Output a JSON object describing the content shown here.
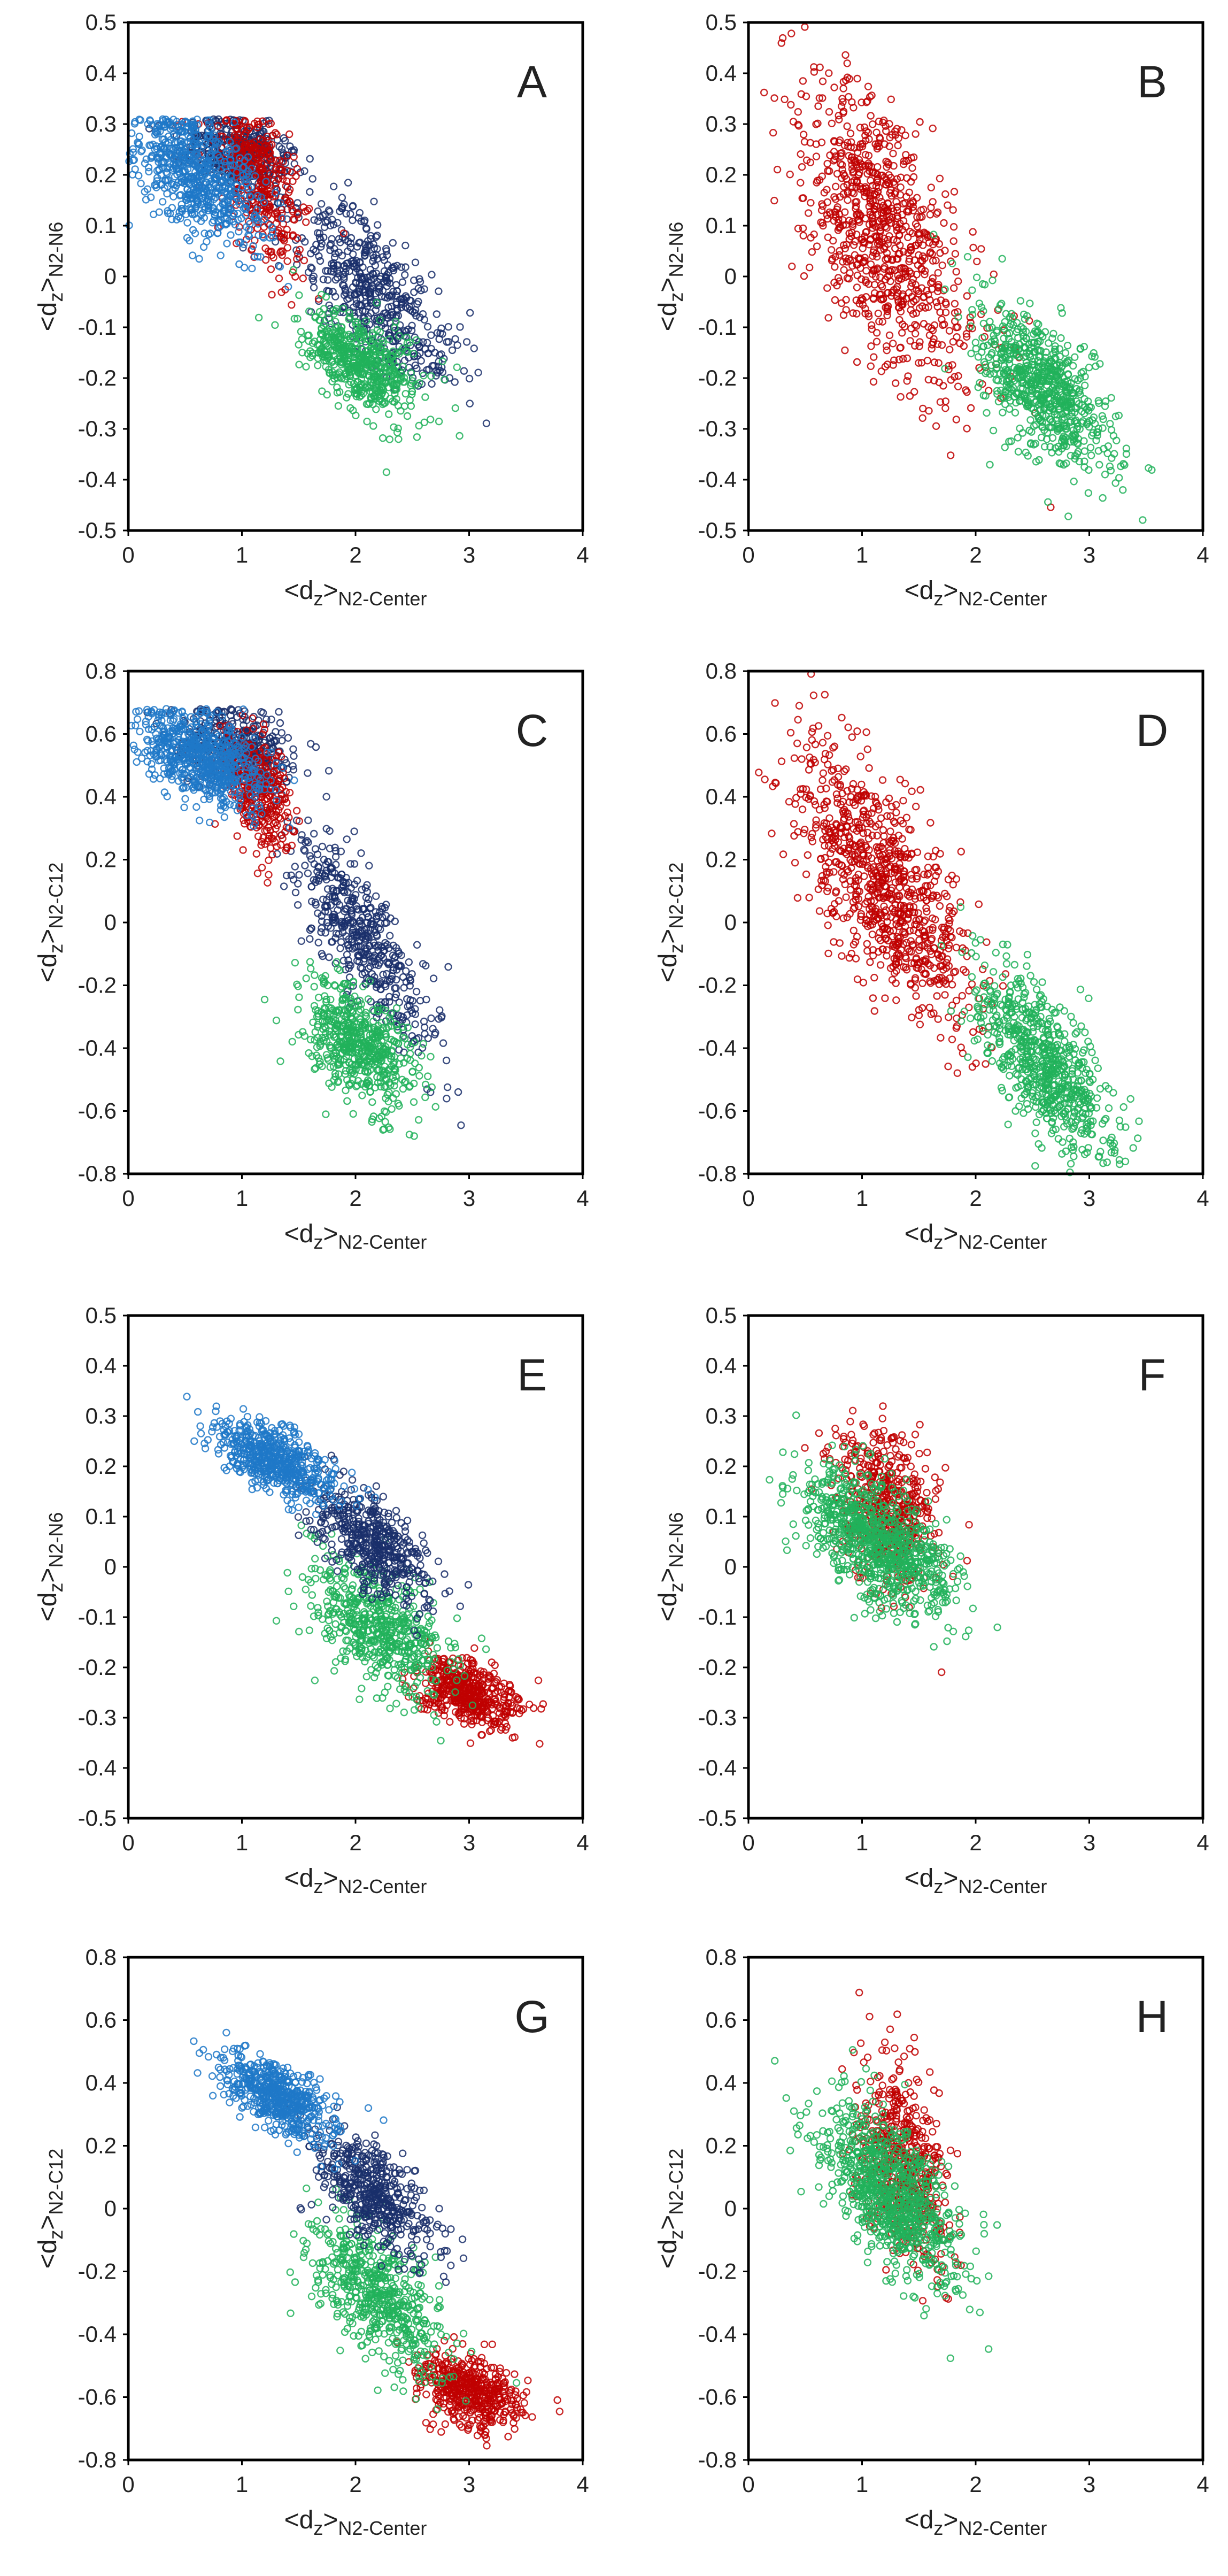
{
  "colors": {
    "light_blue": "#1f78c8",
    "dark_navy": "#1a2f6b",
    "red": "#c00000",
    "green": "#21b25a",
    "axis": "#000000",
    "text": "#222222"
  },
  "chart_data": [
    {
      "type": "scatter",
      "panel": "A",
      "xlabel_main": "<d",
      "xlabel_sub1": "z",
      "xlabel_mid": ">",
      "xlabel_sub2": "N2-Center",
      "ylabel_main": "<d",
      "ylabel_sub1": "z",
      "ylabel_mid": ">",
      "ylabel_sub2": "N2-N6",
      "xlim": [
        0,
        4
      ],
      "ylim": [
        -0.5,
        0.5
      ],
      "xticks": [
        "0",
        "1",
        "2",
        "3",
        "4"
      ],
      "yticks": [
        "-0.5",
        "-0.4",
        "-0.3",
        "-0.2",
        "-0.1",
        "0",
        "0.1",
        "0.2",
        "0.3",
        "0.4",
        "0.5"
      ],
      "series": [
        {
          "name": "dark",
          "color": "dark_navy",
          "clusters": [
            {
              "x": 1.0,
              "y": 0.24,
              "sx": 0.25,
              "sy": 0.04,
              "rho": -0.3,
              "n": 380,
              "clipYMax": 0.31
            },
            {
              "x": 2.15,
              "y": -0.03,
              "sx": 0.35,
              "sy": 0.09,
              "rho": -0.7,
              "n": 520
            }
          ]
        },
        {
          "name": "red",
          "color": "red",
          "clusters": [
            {
              "x": 1.15,
              "y": 0.19,
              "sx": 0.2,
              "sy": 0.08,
              "rho": -0.5,
              "n": 360,
              "clipYMax": 0.31
            }
          ]
        },
        {
          "name": "light",
          "color": "light_blue",
          "clusters": [
            {
              "x": 0.6,
              "y": 0.2,
              "sx": 0.3,
              "sy": 0.07,
              "rho": -0.55,
              "n": 650,
              "clipYMax": 0.31
            }
          ]
        },
        {
          "name": "green",
          "color": "green",
          "clusters": [
            {
              "x": 2.05,
              "y": -0.17,
              "sx": 0.25,
              "sy": 0.05,
              "rho": -0.5,
              "n": 560
            }
          ]
        }
      ]
    },
    {
      "type": "scatter",
      "panel": "B",
      "xlabel_main": "<d",
      "xlabel_sub1": "z",
      "xlabel_mid": ">",
      "xlabel_sub2": "N2-Center",
      "ylabel_main": "<d",
      "ylabel_sub1": "z",
      "ylabel_mid": ">",
      "ylabel_sub2": "N2-N6",
      "xlim": [
        0,
        4
      ],
      "ylim": [
        -0.5,
        0.5
      ],
      "xticks": [
        "0",
        "1",
        "2",
        "3",
        "4"
      ],
      "yticks": [
        "-0.5",
        "-0.4",
        "-0.3",
        "-0.2",
        "-0.1",
        "0",
        "0.1",
        "0.2",
        "0.3",
        "0.4",
        "0.5"
      ],
      "series": [
        {
          "name": "red",
          "color": "red",
          "clusters": [
            {
              "x": 1.2,
              "y": 0.08,
              "sx": 0.4,
              "sy": 0.16,
              "rho": -0.65,
              "n": 850
            }
          ]
        },
        {
          "name": "green",
          "color": "green",
          "clusters": [
            {
              "x": 2.6,
              "y": -0.22,
              "sx": 0.3,
              "sy": 0.08,
              "rho": -0.6,
              "n": 700
            }
          ]
        }
      ]
    },
    {
      "type": "scatter",
      "panel": "C",
      "xlabel_main": "<d",
      "xlabel_sub1": "z",
      "xlabel_mid": ">",
      "xlabel_sub2": "N2-Center",
      "ylabel_main": "<d",
      "ylabel_sub1": "z",
      "ylabel_mid": ">",
      "ylabel_sub2": "N2-C12",
      "xlim": [
        0,
        4
      ],
      "ylim": [
        -0.8,
        0.8
      ],
      "xticks": [
        "0",
        "1",
        "2",
        "3",
        "4"
      ],
      "yticks": [
        "-0.8",
        "-0.6",
        "-0.4",
        "-0.2",
        "0",
        "0.2",
        "0.4",
        "0.6",
        "0.8"
      ],
      "series": [
        {
          "name": "dark",
          "color": "dark_navy",
          "clusters": [
            {
              "x": 0.95,
              "y": 0.55,
              "sx": 0.25,
              "sy": 0.07,
              "rho": -0.3,
              "n": 380,
              "clipYMax": 0.68
            },
            {
              "x": 2.05,
              "y": -0.05,
              "sx": 0.3,
              "sy": 0.18,
              "rho": -0.8,
              "n": 480
            }
          ]
        },
        {
          "name": "red",
          "color": "red",
          "clusters": [
            {
              "x": 1.15,
              "y": 0.42,
              "sx": 0.15,
              "sy": 0.1,
              "rho": -0.4,
              "n": 320
            }
          ]
        },
        {
          "name": "light",
          "color": "light_blue",
          "clusters": [
            {
              "x": 0.65,
              "y": 0.52,
              "sx": 0.28,
              "sy": 0.08,
              "rho": -0.5,
              "n": 650,
              "clipYMax": 0.68
            }
          ]
        },
        {
          "name": "green",
          "color": "green",
          "clusters": [
            {
              "x": 2.05,
              "y": -0.4,
              "sx": 0.25,
              "sy": 0.1,
              "rho": -0.5,
              "n": 560
            }
          ]
        }
      ]
    },
    {
      "type": "scatter",
      "panel": "D",
      "xlabel_main": "<d",
      "xlabel_sub1": "z",
      "xlabel_mid": ">",
      "xlabel_sub2": "N2-Center",
      "ylabel_main": "<d",
      "ylabel_sub1": "z",
      "ylabel_mid": ">",
      "ylabel_sub2": "N2-C12",
      "xlim": [
        0,
        4
      ],
      "ylim": [
        -0.8,
        0.8
      ],
      "xticks": [
        "0",
        "1",
        "2",
        "3",
        "4"
      ],
      "yticks": [
        "-0.8",
        "-0.6",
        "-0.4",
        "-0.2",
        "0",
        "0.2",
        "0.4",
        "0.6",
        "0.8"
      ],
      "series": [
        {
          "name": "red",
          "color": "red",
          "clusters": [
            {
              "x": 1.2,
              "y": 0.12,
              "sx": 0.38,
              "sy": 0.22,
              "rho": -0.7,
              "n": 850
            }
          ]
        },
        {
          "name": "green",
          "color": "green",
          "clusters": [
            {
              "x": 2.6,
              "y": -0.45,
              "sx": 0.3,
              "sy": 0.15,
              "rho": -0.7,
              "n": 700
            }
          ]
        }
      ]
    },
    {
      "type": "scatter",
      "panel": "E",
      "xlabel_main": "<d",
      "xlabel_sub1": "z",
      "xlabel_mid": ">",
      "xlabel_sub2": "N2-Center",
      "ylabel_main": "<d",
      "ylabel_sub1": "z",
      "ylabel_mid": ">",
      "ylabel_sub2": "N2-N6",
      "xlim": [
        0,
        4
      ],
      "ylim": [
        -0.5,
        0.5
      ],
      "xticks": [
        "0",
        "1",
        "2",
        "3",
        "4"
      ],
      "yticks": [
        "-0.5",
        "-0.4",
        "-0.3",
        "-0.2",
        "-0.1",
        "0",
        "0.1",
        "0.2",
        "0.3",
        "0.4",
        "0.5"
      ],
      "series": [
        {
          "name": "red",
          "color": "red",
          "clusters": [
            {
              "x": 3.0,
              "y": -0.25,
              "sx": 0.22,
              "sy": 0.035,
              "rho": -0.4,
              "n": 480
            }
          ]
        },
        {
          "name": "green",
          "color": "green",
          "clusters": [
            {
              "x": 2.2,
              "y": -0.12,
              "sx": 0.3,
              "sy": 0.07,
              "rho": -0.5,
              "n": 560
            }
          ]
        },
        {
          "name": "dark",
          "color": "dark_navy",
          "clusters": [
            {
              "x": 2.15,
              "y": 0.05,
              "sx": 0.25,
              "sy": 0.06,
              "rho": -0.6,
              "n": 480
            }
          ]
        },
        {
          "name": "light",
          "color": "light_blue",
          "clusters": [
            {
              "x": 1.3,
              "y": 0.21,
              "sx": 0.25,
              "sy": 0.04,
              "rho": -0.6,
              "n": 560
            }
          ]
        }
      ]
    },
    {
      "type": "scatter",
      "panel": "F",
      "xlabel_main": "<d",
      "xlabel_sub1": "z",
      "xlabel_mid": ">",
      "xlabel_sub2": "N2-Center",
      "ylabel_main": "<d",
      "ylabel_sub1": "z",
      "ylabel_mid": ">",
      "ylabel_sub2": "N2-N6",
      "xlim": [
        0,
        4
      ],
      "ylim": [
        -0.5,
        0.5
      ],
      "xticks": [
        "0",
        "1",
        "2",
        "3",
        "4"
      ],
      "yticks": [
        "-0.5",
        "-0.4",
        "-0.3",
        "-0.2",
        "-0.1",
        "0",
        "0.1",
        "0.2",
        "0.3",
        "0.4",
        "0.5"
      ],
      "series": [
        {
          "name": "red",
          "color": "red",
          "clusters": [
            {
              "x": 1.2,
              "y": 0.12,
              "sx": 0.22,
              "sy": 0.08,
              "rho": -0.3,
              "n": 520
            }
          ]
        },
        {
          "name": "green",
          "color": "green",
          "clusters": [
            {
              "x": 1.15,
              "y": 0.05,
              "sx": 0.32,
              "sy": 0.07,
              "rho": -0.55,
              "n": 850
            }
          ]
        }
      ]
    },
    {
      "type": "scatter",
      "panel": "G",
      "xlabel_main": "<d",
      "xlabel_sub1": "z",
      "xlabel_mid": ">",
      "xlabel_sub2": "N2-Center",
      "ylabel_main": "<d",
      "ylabel_sub1": "z",
      "ylabel_mid": ">",
      "ylabel_sub2": "N2-C12",
      "xlim": [
        0,
        4
      ],
      "ylim": [
        -0.8,
        0.8
      ],
      "xticks": [
        "0",
        "1",
        "2",
        "3",
        "4"
      ],
      "yticks": [
        "-0.8",
        "-0.6",
        "-0.4",
        "-0.2",
        "0",
        "0.2",
        "0.4",
        "0.6",
        "0.8"
      ],
      "series": [
        {
          "name": "red",
          "color": "red",
          "clusters": [
            {
              "x": 3.0,
              "y": -0.58,
              "sx": 0.22,
              "sy": 0.06,
              "rho": -0.4,
              "n": 480
            }
          ]
        },
        {
          "name": "green",
          "color": "green",
          "clusters": [
            {
              "x": 2.2,
              "y": -0.28,
              "sx": 0.3,
              "sy": 0.12,
              "rho": -0.6,
              "n": 560
            }
          ]
        },
        {
          "name": "dark",
          "color": "dark_navy",
          "clusters": [
            {
              "x": 2.15,
              "y": 0.05,
              "sx": 0.25,
              "sy": 0.1,
              "rho": -0.6,
              "n": 480
            }
          ]
        },
        {
          "name": "light",
          "color": "light_blue",
          "clusters": [
            {
              "x": 1.3,
              "y": 0.36,
              "sx": 0.25,
              "sy": 0.07,
              "rho": -0.6,
              "n": 560
            }
          ]
        }
      ]
    },
    {
      "type": "scatter",
      "panel": "H",
      "xlabel_main": "<d",
      "xlabel_sub1": "z",
      "xlabel_mid": ">",
      "xlabel_sub2": "N2-Center",
      "ylabel_main": "<d",
      "ylabel_sub1": "z",
      "ylabel_mid": ">",
      "ylabel_sub2": "N2-C12",
      "xlim": [
        0,
        4
      ],
      "ylim": [
        -0.8,
        0.8
      ],
      "xticks": [
        "0",
        "1",
        "2",
        "3",
        "4"
      ],
      "yticks": [
        "-0.8",
        "-0.6",
        "-0.4",
        "-0.2",
        "0",
        "0.2",
        "0.4",
        "0.6",
        "0.8"
      ],
      "series": [
        {
          "name": "red",
          "color": "red",
          "clusters": [
            {
              "x": 1.35,
              "y": 0.15,
              "sx": 0.2,
              "sy": 0.16,
              "rho": -0.3,
              "n": 520
            }
          ]
        },
        {
          "name": "green",
          "color": "green",
          "clusters": [
            {
              "x": 1.25,
              "y": 0.05,
              "sx": 0.3,
              "sy": 0.14,
              "rho": -0.6,
              "n": 850
            }
          ]
        }
      ]
    }
  ]
}
